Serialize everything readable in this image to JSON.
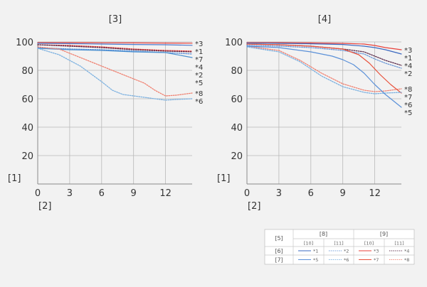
{
  "chart_data": [
    {
      "type": "line",
      "title": "[3]",
      "ylabel": "[1]",
      "xlabel": "[2]",
      "xlim": [
        0,
        14.5
      ],
      "ylim": [
        0,
        100
      ],
      "xticks": [
        "0",
        "3",
        "6",
        "9",
        "12"
      ],
      "yticks": [
        "20",
        "40",
        "60",
        "80",
        "100"
      ],
      "grid": true,
      "series": [
        {
          "name": "*3",
          "color": "#e8403a",
          "dash": "solid",
          "x": [
            0,
            3,
            6,
            9,
            12,
            14.5
          ],
          "y": [
            99.5,
            99.5,
            99.4,
            99.3,
            99.2,
            99.1
          ]
        },
        {
          "name": "*1",
          "color": "#4a78cc",
          "dash": "solid",
          "x": [
            0,
            3,
            6,
            9,
            12,
            14.5
          ],
          "y": [
            99.0,
            98.8,
            98.5,
            98.2,
            98.0,
            97.6
          ]
        },
        {
          "name": "*7",
          "color": "#e8403a",
          "dash": "dotted",
          "x": [
            0,
            3,
            6,
            9,
            12,
            14.5
          ],
          "y": [
            98.0,
            97.5,
            96.5,
            95.0,
            94.0,
            93.5
          ]
        },
        {
          "name": "*4",
          "color": "#5a2a4a",
          "dash": "dotted",
          "x": [
            0,
            3,
            6,
            9,
            12,
            14.5
          ],
          "y": [
            98.0,
            97.0,
            96.0,
            94.5,
            93.5,
            93.0
          ]
        },
        {
          "name": "*2",
          "color": "#5a8fd8",
          "dash": "dotted",
          "x": [
            0,
            3,
            6,
            9,
            12,
            14.5
          ],
          "y": [
            96.0,
            95.0,
            94.5,
            93.5,
            92.5,
            91.5
          ]
        },
        {
          "name": "*5",
          "color": "#4a90d0",
          "dash": "solid",
          "x": [
            0,
            3,
            6,
            9,
            12,
            14.5
          ],
          "y": [
            95.5,
            94.5,
            94.0,
            93.0,
            92.5,
            89.0
          ]
        },
        {
          "name": "*8",
          "color": "#f08070",
          "dash": "dotted",
          "x": [
            0,
            2,
            4,
            6,
            8,
            10,
            11,
            12,
            13,
            14.5
          ],
          "y": [
            96.5,
            95,
            89,
            83,
            77,
            71,
            66,
            62,
            62.5,
            64
          ]
        },
        {
          "name": "*6",
          "color": "#7ab0e0",
          "dash": "dotted",
          "x": [
            0,
            2,
            4,
            6,
            7,
            8,
            10,
            12,
            13,
            14.5
          ],
          "y": [
            95.5,
            91,
            83,
            72,
            66,
            63,
            61,
            59,
            59.5,
            60
          ]
        }
      ]
    },
    {
      "type": "line",
      "title": "[4]",
      "ylabel": "[1]",
      "xlabel": "[2]",
      "xlim": [
        0,
        14.5
      ],
      "ylim": [
        0,
        100
      ],
      "xticks": [
        "0",
        "3",
        "6",
        "9",
        "12"
      ],
      "yticks": [
        "20",
        "40",
        "60",
        "80",
        "100"
      ],
      "grid": true,
      "series": [
        {
          "name": "*3",
          "color": "#e8403a",
          "dash": "solid",
          "x": [
            0,
            3,
            6,
            9,
            11,
            12,
            13,
            14.5
          ],
          "y": [
            99.5,
            99.5,
            99.3,
            99.0,
            98.5,
            97.5,
            96.0,
            94.5
          ]
        },
        {
          "name": "*1",
          "color": "#3a68c0",
          "dash": "solid",
          "x": [
            0,
            3,
            6,
            9,
            11,
            12,
            13,
            14.5
          ],
          "y": [
            99.2,
            99.0,
            98.7,
            98.2,
            97.0,
            96.0,
            94.5,
            91.5
          ]
        },
        {
          "name": "*4",
          "color": "#5a2a4a",
          "dash": "dotted",
          "x": [
            0,
            3,
            6,
            9,
            11,
            12,
            13,
            14.5
          ],
          "y": [
            98.5,
            98.0,
            97.0,
            95.0,
            93.0,
            90.0,
            87.0,
            83.5
          ]
        },
        {
          "name": "*2",
          "color": "#6a98d8",
          "dash": "dotted",
          "x": [
            0,
            3,
            6,
            9,
            11,
            12,
            13,
            14.5
          ],
          "y": [
            97.5,
            97.0,
            96.0,
            94.0,
            91.5,
            88.0,
            85.0,
            81.5
          ]
        },
        {
          "name": "*8",
          "color": "#f08070",
          "dash": "dotted",
          "x": [
            0,
            3,
            5,
            7,
            9,
            11,
            12,
            13,
            14.5
          ],
          "y": [
            97.0,
            94.0,
            87.0,
            78.0,
            70.5,
            66.0,
            65.0,
            65.5,
            67.0
          ]
        },
        {
          "name": "*7",
          "color": "#e8503a",
          "dash": "solid",
          "x": [
            0,
            3,
            6,
            9,
            10.5,
            11.5,
            12.5,
            13.5,
            14.5
          ],
          "y": [
            98.5,
            98.0,
            97.0,
            95.0,
            91.0,
            85.0,
            77.0,
            70.0,
            64.0
          ]
        },
        {
          "name": "*6",
          "color": "#7ab0e0",
          "dash": "dotted",
          "x": [
            0,
            3,
            5,
            7,
            9,
            11,
            12,
            13,
            14.5
          ],
          "y": [
            96.5,
            93.0,
            86.0,
            76.0,
            68.5,
            64.5,
            63.5,
            64.0,
            64.5
          ]
        },
        {
          "name": "*5",
          "color": "#5a90d8",
          "dash": "solid",
          "x": [
            0,
            3,
            6,
            8,
            9,
            10,
            11,
            12,
            13,
            14.5
          ],
          "y": [
            97.0,
            96.0,
            93.0,
            90.0,
            87.5,
            84.0,
            78.0,
            70.0,
            63.0,
            54.0
          ]
        }
      ]
    }
  ],
  "legend": {
    "corner": "[5]",
    "groups": [
      "[8]",
      "[9]"
    ],
    "subheaders": [
      "[10]",
      "[11]",
      "[10]",
      "[11]"
    ],
    "rows": [
      {
        "label": "[6]",
        "cells": [
          {
            "mark": "*1",
            "color": "#3a68c0",
            "dash": "solid"
          },
          {
            "mark": "*2",
            "color": "#6a98d8",
            "dash": "dotted"
          },
          {
            "mark": "*3",
            "color": "#e8403a",
            "dash": "solid"
          },
          {
            "mark": "*4",
            "color": "#5a2a4a",
            "dash": "dotted"
          }
        ]
      },
      {
        "label": "[7]",
        "cells": [
          {
            "mark": "*5",
            "color": "#5a90d8",
            "dash": "solid"
          },
          {
            "mark": "*6",
            "color": "#7ab0e0",
            "dash": "dotted"
          },
          {
            "mark": "*7",
            "color": "#e8503a",
            "dash": "solid"
          },
          {
            "mark": "*8",
            "color": "#f08070",
            "dash": "dotted"
          }
        ]
      }
    ]
  }
}
